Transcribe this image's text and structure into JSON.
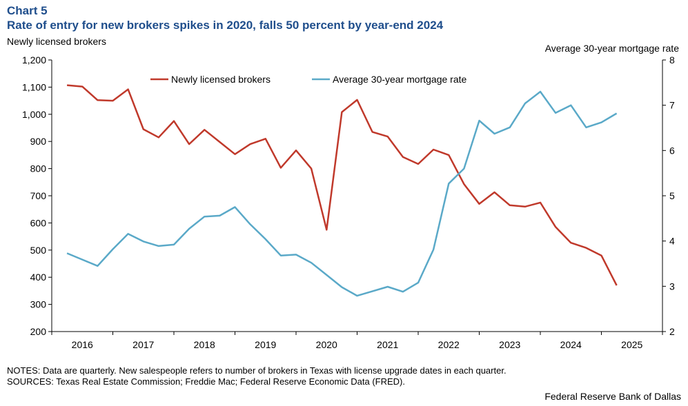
{
  "header": {
    "chart_number": "Chart 5",
    "title": "Rate of entry for new brokers spikes in 2020, falls 50 percent by year-end 2024"
  },
  "footer": {
    "notes": "NOTES: Data are quarterly. New salespeople refers to number of brokers in Texas with license upgrade dates in each quarter.",
    "sources": "SOURCES: Texas Real Estate Commission; Freddie Mac; Federal Reserve Economic Data (FRED).",
    "credit": "Federal Reserve Bank of Dallas"
  },
  "colors": {
    "brokers": "#c0392b",
    "mortgage": "#5aa9c8"
  },
  "chart_data": {
    "type": "line",
    "ylabel": "Newly  licensed brokers",
    "y2label": "Average 30-year mortgage rate",
    "ylim": [
      200,
      1200
    ],
    "y2lim": [
      2,
      8
    ],
    "yticks": [
      "200",
      "300",
      "400",
      "500",
      "600",
      "700",
      "800",
      "900",
      "1,000",
      "1,100",
      "1,200"
    ],
    "y2ticks": [
      "2",
      "3",
      "4",
      "5",
      "6",
      "7",
      "8"
    ],
    "xticks": [
      "2016",
      "2017",
      "2018",
      "2019",
      "2020",
      "2021",
      "2022",
      "2023",
      "2024",
      "2025"
    ],
    "xstart": 2015.5,
    "series": [
      {
        "name": "Newly licensed brokers",
        "axis": "left",
        "start": 2015.75,
        "values": [
          1107,
          1102,
          1052,
          1050,
          1092,
          945,
          915,
          975,
          890,
          943,
          898,
          853,
          890,
          910,
          803,
          867,
          800,
          575,
          1008,
          1053,
          935,
          918,
          843,
          817,
          870,
          850,
          743,
          670,
          713,
          665,
          660,
          675,
          585,
          527,
          508,
          480,
          370
        ]
      },
      {
        "name": "Average 30-year mortgage rate",
        "axis": "right",
        "start": 2015.75,
        "values": [
          3.73,
          3.59,
          3.45,
          3.82,
          4.16,
          3.99,
          3.89,
          3.92,
          4.27,
          4.54,
          4.56,
          4.75,
          4.37,
          4.04,
          3.68,
          3.7,
          3.52,
          3.25,
          2.98,
          2.79,
          2.89,
          2.99,
          2.88,
          3.08,
          3.81,
          5.27,
          5.6,
          6.66,
          6.37,
          6.51,
          7.04,
          7.3,
          6.83,
          7.0,
          6.51,
          6.62,
          6.82
        ]
      }
    ]
  }
}
